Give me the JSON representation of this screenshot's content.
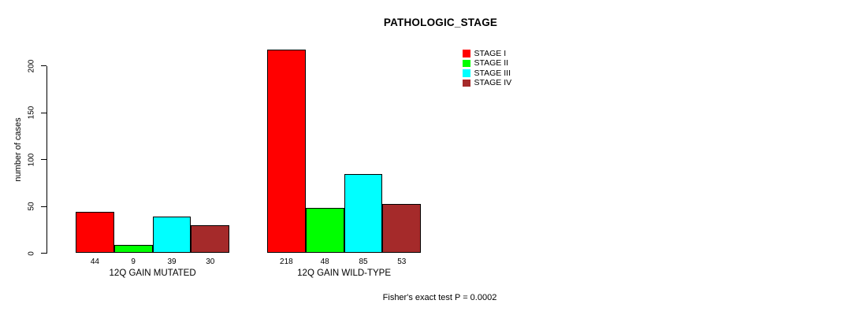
{
  "chart_data": {
    "type": "bar",
    "title": "PATHOLOGIC_STAGE",
    "ylabel": "number of cases",
    "xlabel": "",
    "yticks": [
      0,
      50,
      100,
      150,
      200
    ],
    "ylim": [
      0,
      220
    ],
    "grid": false,
    "legend_position": "top-right",
    "bar_values_shown": true,
    "categories": [
      "12Q GAIN MUTATED",
      "12Q GAIN WILD-TYPE"
    ],
    "series": [
      {
        "name": "STAGE I",
        "color": "#FF0000",
        "values": [
          44,
          218
        ]
      },
      {
        "name": "STAGE II",
        "color": "#00FF00",
        "values": [
          9,
          48
        ]
      },
      {
        "name": "STAGE III",
        "color": "#00FFFF",
        "values": [
          39,
          85
        ]
      },
      {
        "name": "STAGE IV",
        "color": "#A52A2A",
        "values": [
          30,
          53
        ]
      }
    ],
    "annotation": "Fisher's exact test P = 0.0002"
  },
  "colors": {
    "axis": "#000000",
    "text": "#000000",
    "background": "#FFFFFF"
  }
}
